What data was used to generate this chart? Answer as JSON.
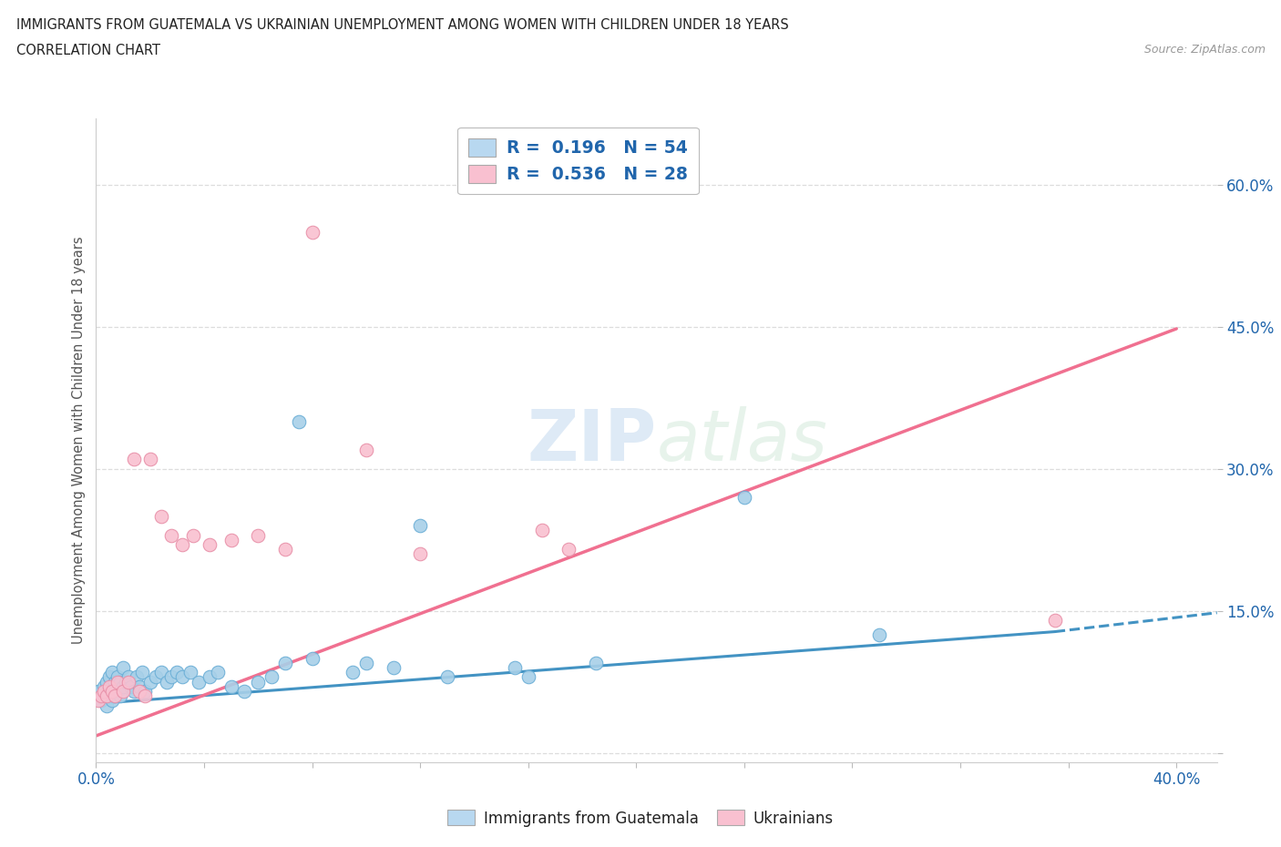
{
  "title_line1": "IMMIGRANTS FROM GUATEMALA VS UKRAINIAN UNEMPLOYMENT AMONG WOMEN WITH CHILDREN UNDER 18 YEARS",
  "title_line2": "CORRELATION CHART",
  "source_text": "Source: ZipAtlas.com",
  "ylabel": "Unemployment Among Women with Children Under 18 years",
  "xlim": [
    0.0,
    0.415
  ],
  "ylim": [
    -0.01,
    0.67
  ],
  "ytick_values": [
    0.0,
    0.15,
    0.3,
    0.45,
    0.6
  ],
  "xtick_values": [
    0.0,
    0.04,
    0.08,
    0.12,
    0.16,
    0.2,
    0.24,
    0.28,
    0.32,
    0.36,
    0.4
  ],
  "guatemala_R": 0.196,
  "guatemala_N": 54,
  "ukraine_R": 0.536,
  "ukraine_N": 28,
  "scatter_blue": "#A8D0E8",
  "scatter_blue_edge": "#6AAED6",
  "scatter_pink": "#F9C0D0",
  "scatter_pink_edge": "#E890A8",
  "line_blue": "#4393C3",
  "line_pink": "#F07090",
  "legend_blue_face": "#B8D8F0",
  "legend_pink_face": "#F9C0D0",
  "text_blue": "#2166AC",
  "text_dark": "#222222",
  "text_gray": "#999999",
  "grid_color": "#DDDDDD",
  "watermark_color": "#D0E4F0",
  "blue_line_x0": 0.0,
  "blue_line_y0": 0.052,
  "blue_line_x1": 0.355,
  "blue_line_y1": 0.128,
  "blue_line_dash_x1": 0.415,
  "blue_line_dash_y1": 0.148,
  "pink_line_x0": 0.0,
  "pink_line_y0": 0.018,
  "pink_line_x1": 0.4,
  "pink_line_y1": 0.448,
  "guatemala_x": [
    0.001,
    0.002,
    0.003,
    0.003,
    0.004,
    0.004,
    0.005,
    0.005,
    0.006,
    0.006,
    0.007,
    0.007,
    0.008,
    0.008,
    0.009,
    0.009,
    0.01,
    0.01,
    0.011,
    0.012,
    0.013,
    0.014,
    0.015,
    0.016,
    0.017,
    0.018,
    0.02,
    0.022,
    0.024,
    0.026,
    0.028,
    0.03,
    0.032,
    0.035,
    0.038,
    0.042,
    0.045,
    0.05,
    0.055,
    0.06,
    0.065,
    0.07,
    0.075,
    0.08,
    0.095,
    0.1,
    0.11,
    0.12,
    0.13,
    0.155,
    0.16,
    0.185,
    0.24,
    0.29
  ],
  "guatemala_y": [
    0.065,
    0.055,
    0.07,
    0.06,
    0.075,
    0.05,
    0.08,
    0.06,
    0.085,
    0.055,
    0.075,
    0.06,
    0.08,
    0.065,
    0.075,
    0.06,
    0.09,
    0.07,
    0.075,
    0.08,
    0.07,
    0.065,
    0.08,
    0.07,
    0.085,
    0.065,
    0.075,
    0.08,
    0.085,
    0.075,
    0.08,
    0.085,
    0.08,
    0.085,
    0.075,
    0.08,
    0.085,
    0.07,
    0.065,
    0.075,
    0.08,
    0.095,
    0.35,
    0.1,
    0.085,
    0.095,
    0.09,
    0.24,
    0.08,
    0.09,
    0.08,
    0.095,
    0.27,
    0.125
  ],
  "ukraine_x": [
    0.001,
    0.002,
    0.003,
    0.004,
    0.005,
    0.006,
    0.007,
    0.008,
    0.01,
    0.012,
    0.014,
    0.016,
    0.018,
    0.02,
    0.024,
    0.028,
    0.032,
    0.036,
    0.042,
    0.05,
    0.06,
    0.07,
    0.08,
    0.1,
    0.12,
    0.165,
    0.175,
    0.355
  ],
  "ukraine_y": [
    0.055,
    0.06,
    0.065,
    0.06,
    0.07,
    0.065,
    0.06,
    0.075,
    0.065,
    0.075,
    0.31,
    0.065,
    0.06,
    0.31,
    0.25,
    0.23,
    0.22,
    0.23,
    0.22,
    0.225,
    0.23,
    0.215,
    0.55,
    0.32,
    0.21,
    0.235,
    0.215,
    0.14
  ]
}
